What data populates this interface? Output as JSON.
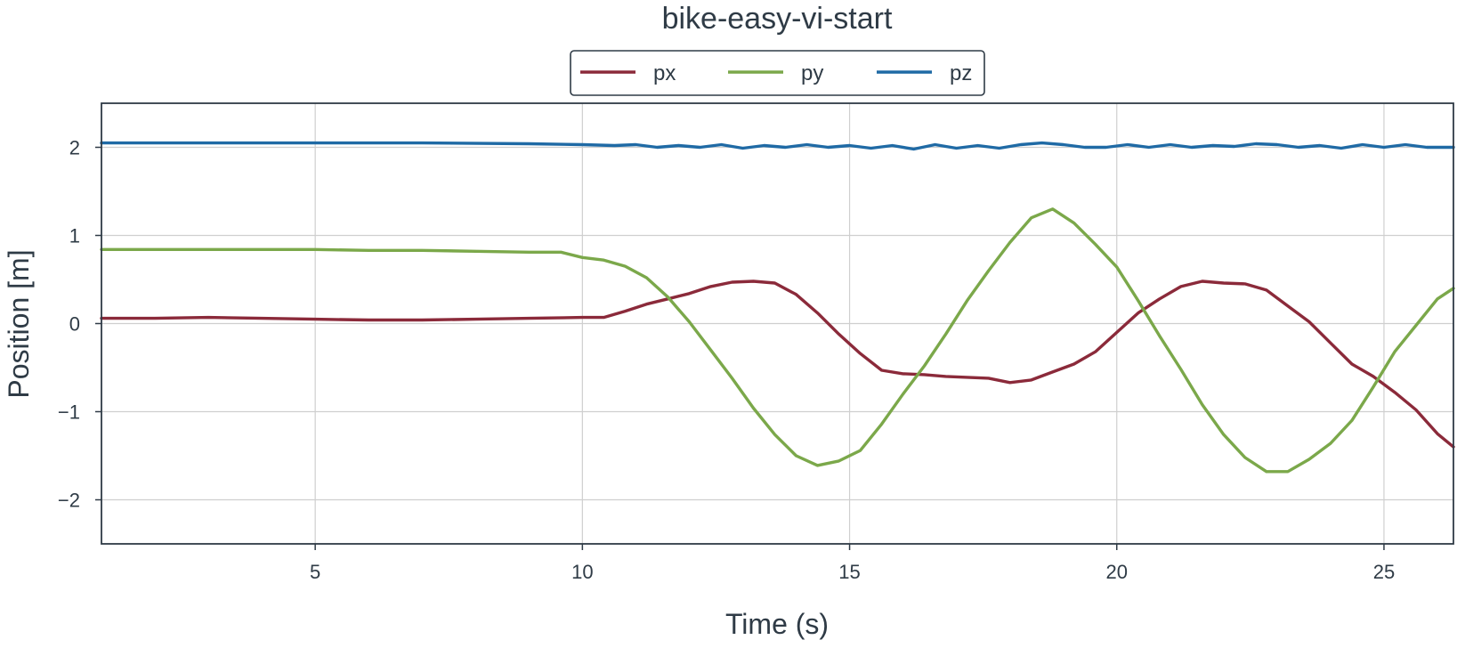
{
  "chart_data": {
    "type": "line",
    "title": "bike-easy-vi-start",
    "xlabel": "Time (s)",
    "ylabel": "Position [m]",
    "xlim": [
      1.0,
      26.3
    ],
    "ylim": [
      -2.5,
      2.5
    ],
    "xticks": [
      5,
      10,
      15,
      20,
      25
    ],
    "yticks": [
      -2,
      -1,
      0,
      1,
      2
    ],
    "xtick_labels": [
      "5",
      "10",
      "15",
      "20",
      "25"
    ],
    "ytick_labels": [
      "−2",
      "−1",
      "0",
      "1",
      "2"
    ],
    "grid": true,
    "legend_placement": "top-center",
    "series": [
      {
        "name": "px",
        "color": "#8b2a3a",
        "points": [
          [
            1.0,
            0.06
          ],
          [
            2.0,
            0.06
          ],
          [
            3.0,
            0.07
          ],
          [
            4.0,
            0.06
          ],
          [
            5.0,
            0.05
          ],
          [
            6.0,
            0.04
          ],
          [
            7.0,
            0.04
          ],
          [
            8.0,
            0.05
          ],
          [
            9.0,
            0.06
          ],
          [
            10.0,
            0.07
          ],
          [
            10.4,
            0.07
          ],
          [
            10.8,
            0.14
          ],
          [
            11.2,
            0.22
          ],
          [
            11.6,
            0.28
          ],
          [
            12.0,
            0.34
          ],
          [
            12.4,
            0.42
          ],
          [
            12.8,
            0.47
          ],
          [
            13.2,
            0.48
          ],
          [
            13.6,
            0.46
          ],
          [
            14.0,
            0.33
          ],
          [
            14.4,
            0.12
          ],
          [
            14.8,
            -0.12
          ],
          [
            15.2,
            -0.34
          ],
          [
            15.6,
            -0.53
          ],
          [
            16.0,
            -0.57
          ],
          [
            16.4,
            -0.58
          ],
          [
            16.8,
            -0.6
          ],
          [
            17.2,
            -0.61
          ],
          [
            17.6,
            -0.62
          ],
          [
            18.0,
            -0.67
          ],
          [
            18.4,
            -0.64
          ],
          [
            18.8,
            -0.55
          ],
          [
            19.2,
            -0.46
          ],
          [
            19.6,
            -0.32
          ],
          [
            20.0,
            -0.1
          ],
          [
            20.4,
            0.12
          ],
          [
            20.8,
            0.28
          ],
          [
            21.2,
            0.42
          ],
          [
            21.6,
            0.48
          ],
          [
            22.0,
            0.46
          ],
          [
            22.4,
            0.45
          ],
          [
            22.8,
            0.38
          ],
          [
            23.2,
            0.2
          ],
          [
            23.6,
            0.02
          ],
          [
            24.0,
            -0.22
          ],
          [
            24.4,
            -0.46
          ],
          [
            24.8,
            -0.6
          ],
          [
            25.2,
            -0.78
          ],
          [
            25.6,
            -0.98
          ],
          [
            26.0,
            -1.25
          ],
          [
            26.3,
            -1.4
          ]
        ]
      },
      {
        "name": "py",
        "color": "#7ba84a",
        "points": [
          [
            1.0,
            0.84
          ],
          [
            2.0,
            0.84
          ],
          [
            3.0,
            0.84
          ],
          [
            4.0,
            0.84
          ],
          [
            5.0,
            0.84
          ],
          [
            6.0,
            0.83
          ],
          [
            7.0,
            0.83
          ],
          [
            8.0,
            0.82
          ],
          [
            9.0,
            0.81
          ],
          [
            9.6,
            0.81
          ],
          [
            10.0,
            0.75
          ],
          [
            10.4,
            0.72
          ],
          [
            10.8,
            0.65
          ],
          [
            11.2,
            0.52
          ],
          [
            11.6,
            0.3
          ],
          [
            12.0,
            0.02
          ],
          [
            12.4,
            -0.3
          ],
          [
            12.8,
            -0.62
          ],
          [
            13.2,
            -0.96
          ],
          [
            13.6,
            -1.26
          ],
          [
            14.0,
            -1.5
          ],
          [
            14.4,
            -1.61
          ],
          [
            14.8,
            -1.56
          ],
          [
            15.2,
            -1.44
          ],
          [
            15.6,
            -1.14
          ],
          [
            16.0,
            -0.8
          ],
          [
            16.4,
            -0.48
          ],
          [
            16.8,
            -0.12
          ],
          [
            17.2,
            0.26
          ],
          [
            17.6,
            0.6
          ],
          [
            18.0,
            0.92
          ],
          [
            18.4,
            1.2
          ],
          [
            18.8,
            1.3
          ],
          [
            19.2,
            1.14
          ],
          [
            19.6,
            0.9
          ],
          [
            20.0,
            0.64
          ],
          [
            20.4,
            0.26
          ],
          [
            20.8,
            -0.14
          ],
          [
            21.2,
            -0.52
          ],
          [
            21.6,
            -0.92
          ],
          [
            22.0,
            -1.26
          ],
          [
            22.4,
            -1.52
          ],
          [
            22.8,
            -1.68
          ],
          [
            23.2,
            -1.68
          ],
          [
            23.6,
            -1.54
          ],
          [
            24.0,
            -1.36
          ],
          [
            24.4,
            -1.1
          ],
          [
            24.8,
            -0.72
          ],
          [
            25.2,
            -0.32
          ],
          [
            25.6,
            -0.02
          ],
          [
            26.0,
            0.28
          ],
          [
            26.3,
            0.4
          ]
        ]
      },
      {
        "name": "pz",
        "color": "#1f6aa5",
        "points": [
          [
            1.0,
            2.05
          ],
          [
            3.0,
            2.05
          ],
          [
            5.0,
            2.05
          ],
          [
            7.0,
            2.05
          ],
          [
            9.0,
            2.04
          ],
          [
            10.0,
            2.03
          ],
          [
            10.6,
            2.02
          ],
          [
            11.0,
            2.03
          ],
          [
            11.4,
            2.0
          ],
          [
            11.8,
            2.02
          ],
          [
            12.2,
            2.0
          ],
          [
            12.6,
            2.03
          ],
          [
            13.0,
            1.99
          ],
          [
            13.4,
            2.02
          ],
          [
            13.8,
            2.0
          ],
          [
            14.2,
            2.03
          ],
          [
            14.6,
            2.0
          ],
          [
            15.0,
            2.02
          ],
          [
            15.4,
            1.99
          ],
          [
            15.8,
            2.02
          ],
          [
            16.2,
            1.98
          ],
          [
            16.6,
            2.03
          ],
          [
            17.0,
            1.99
          ],
          [
            17.4,
            2.02
          ],
          [
            17.8,
            1.99
          ],
          [
            18.2,
            2.03
          ],
          [
            18.6,
            2.05
          ],
          [
            19.0,
            2.03
          ],
          [
            19.4,
            2.0
          ],
          [
            19.8,
            2.0
          ],
          [
            20.2,
            2.03
          ],
          [
            20.6,
            2.0
          ],
          [
            21.0,
            2.03
          ],
          [
            21.4,
            2.0
          ],
          [
            21.8,
            2.02
          ],
          [
            22.2,
            2.01
          ],
          [
            22.6,
            2.04
          ],
          [
            23.0,
            2.03
          ],
          [
            23.4,
            2.0
          ],
          [
            23.8,
            2.02
          ],
          [
            24.2,
            1.99
          ],
          [
            24.6,
            2.03
          ],
          [
            25.0,
            2.0
          ],
          [
            25.4,
            2.03
          ],
          [
            25.8,
            2.0
          ],
          [
            26.3,
            2.0
          ]
        ]
      }
    ]
  }
}
